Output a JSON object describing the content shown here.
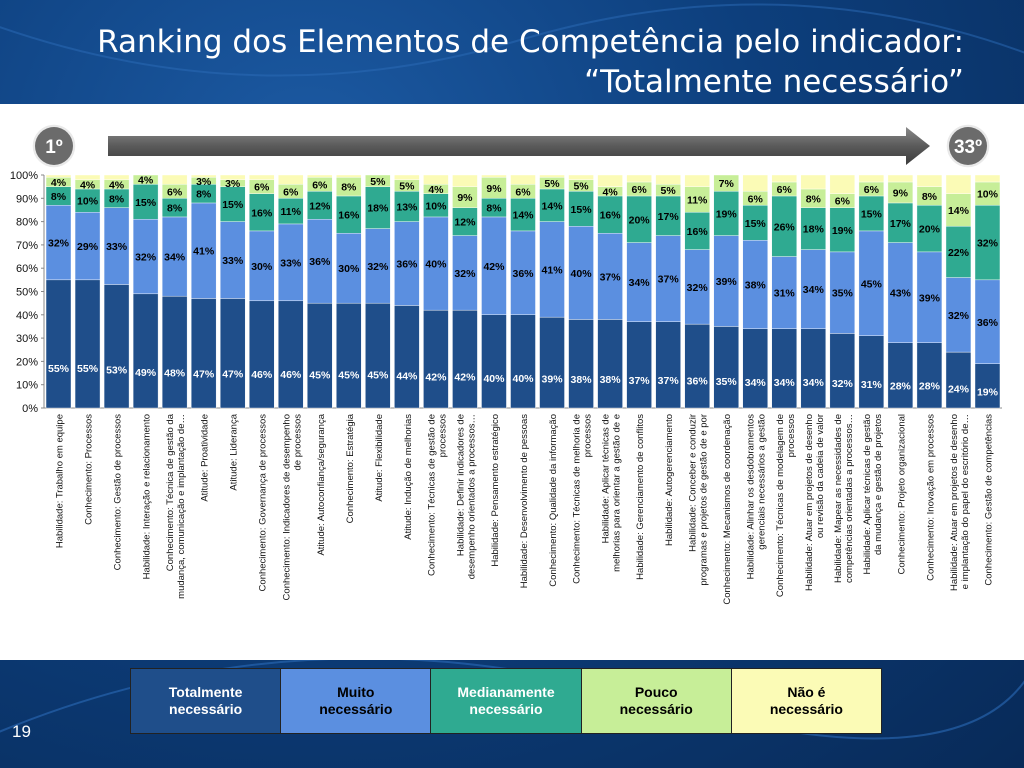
{
  "slide": {
    "title_line1": "Ranking dos Elementos de Competência pelo indicador:",
    "title_line2": "“Totalmente necessário”",
    "rank_start": "1º",
    "rank_end": "33º",
    "page_number": "19"
  },
  "colors": {
    "totalmente": "#1f4e8a",
    "muito": "#5b8fe0",
    "medianamente": "#2faa91",
    "pouco": "#c7ee98",
    "nao": "#fbfbb6"
  },
  "chart_data": {
    "type": "bar",
    "stacked": true,
    "ylim": [
      0,
      100
    ],
    "yticks": [
      "0%",
      "10%",
      "20%",
      "30%",
      "40%",
      "50%",
      "60%",
      "70%",
      "80%",
      "90%",
      "100%"
    ],
    "grid": false,
    "categories": [
      "Habilidade: Trabalho em equipe",
      "Conhecimento: Processos",
      "Conhecimento: Gestão de processos",
      "Habilidade: Interação e relacionamento",
      "Conhecimento: Técnica de gestão da mudança, comunicação e implantação de…",
      "Atitude: Proatividade",
      "Atitude: Liderança",
      "Conhecimento: Governança de processos",
      "Conhecimento: Indicadores de desempenho de processos",
      "Atitude: Autoconfiança/segurança",
      "Conhecimento: Estratégia",
      "Atitude: Flexibilidade",
      "Atitude: Indução de melhorias",
      "Conhecimento: Técnicas de gestão de processos",
      "Habilidade: Definir indicadores de desempenho orientados a processos…",
      "Habilidade: Pensamento estratégico",
      "Habilidade: Desenvolvimento de pessoas",
      "Conhecimento: Qualidade da informação",
      "Conhecimento: Técnicas de melhoria de processos",
      "Habilidade: Aplicar técnicas de melhorias para orientar a gestão de e por processos",
      "Habilidade: Gerenciamento de conflitos",
      "Habilidade: Autogerenciamento",
      "Habilidade: Conceber e conduzir programas e projetos de gestão de e por processos",
      "Conhecimento: Mecanismos de coordenação",
      "Habilidade: Alinhar os desdobramentos gerenciais necessários a gestão integrada…",
      "Conhecimento: Técnicas de modelagem de processos",
      "Habilidade: Atuar em projetos de desenho ou revisão da cadeia de valor",
      "Habilidade: Mapear as necessidades de competências orientadas a processos…",
      "Habilidade: Aplicar técnicas de gestão da mudança e gestão de projetos",
      "Conhecimento: Projeto organizacional",
      "Conhecimento: Inovação em processos",
      "Habilidade: Atuar em projetos de desenho e implantação do papel do escritório de…",
      "Conhecimento: Gestão de competências"
    ],
    "series": [
      {
        "name": "Totalmente necessário",
        "values": [
          55,
          55,
          53,
          49,
          48,
          47,
          47,
          46,
          46,
          45,
          45,
          45,
          44,
          42,
          42,
          40,
          40,
          39,
          38,
          38,
          37,
          37,
          36,
          35,
          34,
          34,
          34,
          32,
          31,
          28,
          28,
          24,
          19
        ]
      },
      {
        "name": "Muito necessário",
        "values": [
          32,
          29,
          33,
          32,
          34,
          41,
          33,
          30,
          33,
          36,
          30,
          32,
          36,
          40,
          32,
          42,
          36,
          41,
          40,
          37,
          34,
          37,
          32,
          39,
          38,
          31,
          34,
          35,
          45,
          43,
          39,
          32,
          36
        ]
      },
      {
        "name": "Medianamente necessário",
        "values": [
          8,
          10,
          8,
          15,
          8,
          8,
          15,
          16,
          11,
          12,
          16,
          18,
          13,
          10,
          12,
          8,
          14,
          14,
          15,
          16,
          20,
          17,
          16,
          19,
          15,
          26,
          18,
          19,
          15,
          17,
          20,
          22,
          32
        ]
      },
      {
        "name": "Pouco necessário",
        "values": [
          4,
          4,
          4,
          4,
          6,
          3,
          3,
          6,
          6,
          6,
          8,
          5,
          5,
          4,
          9,
          9,
          6,
          5,
          5,
          4,
          6,
          5,
          11,
          7,
          6,
          6,
          8,
          6,
          6,
          9,
          8,
          14,
          10
        ]
      },
      {
        "name": "Não é necessário",
        "values": [
          1,
          2,
          2,
          0,
          4,
          1,
          2,
          2,
          4,
          1,
          1,
          0,
          2,
          4,
          5,
          1,
          4,
          1,
          2,
          5,
          3,
          4,
          5,
          0,
          7,
          3,
          6,
          8,
          3,
          3,
          5,
          8,
          3
        ]
      }
    ],
    "labels": [
      [
        "55%",
        "32%",
        "8%",
        "4%",
        ""
      ],
      [
        "55%",
        "29%",
        "10%",
        "4%",
        ""
      ],
      [
        "53%",
        "33%",
        "8%",
        "4%",
        ""
      ],
      [
        "49%",
        "32%",
        "15%",
        "4%",
        ""
      ],
      [
        "48%",
        "34%",
        "8%",
        "6%",
        ""
      ],
      [
        "47%",
        "41%",
        "8%",
        "3%",
        ""
      ],
      [
        "47%",
        "33%",
        "15%",
        "3%",
        ""
      ],
      [
        "46%",
        "30%",
        "16%",
        "6%",
        ""
      ],
      [
        "46%",
        "33%",
        "11%",
        "6%",
        ""
      ],
      [
        "45%",
        "36%",
        "12%",
        "6%",
        ""
      ],
      [
        "45%",
        "30%",
        "16%",
        "8%",
        ""
      ],
      [
        "45%",
        "32%",
        "18%",
        "5%",
        ""
      ],
      [
        "44%",
        "36%",
        "13%",
        "5%",
        ""
      ],
      [
        "42%",
        "40%",
        "10%",
        "4%",
        ""
      ],
      [
        "42%",
        "32%",
        "12%",
        "9%",
        ""
      ],
      [
        "40%",
        "42%",
        "8%",
        "9%",
        ""
      ],
      [
        "40%",
        "36%",
        "14%",
        "6%",
        ""
      ],
      [
        "39%",
        "41%",
        "14%",
        "5%",
        ""
      ],
      [
        "38%",
        "40%",
        "15%",
        "5%",
        ""
      ],
      [
        "38%",
        "37%",
        "16%",
        "4%",
        ""
      ],
      [
        "37%",
        "34%",
        "20%",
        "6%",
        ""
      ],
      [
        "37%",
        "37%",
        "17%",
        "5%",
        ""
      ],
      [
        "36%",
        "32%",
        "16%",
        "11%",
        ""
      ],
      [
        "35%",
        "39%",
        "19%",
        "7%",
        ""
      ],
      [
        "34%",
        "38%",
        "15%",
        "6%",
        ""
      ],
      [
        "34%",
        "31%",
        "26%",
        "6%",
        ""
      ],
      [
        "34%",
        "34%",
        "18%",
        "8%",
        ""
      ],
      [
        "32%",
        "35%",
        "19%",
        "6%",
        ""
      ],
      [
        "31%",
        "45%",
        "15%",
        "6%",
        ""
      ],
      [
        "28%",
        "43%",
        "17%",
        "9%",
        ""
      ],
      [
        "28%",
        "39%",
        "20%",
        "8%",
        ""
      ],
      [
        "24%",
        "32%",
        "22%",
        "14%",
        ""
      ],
      [
        "19%",
        "36%",
        "32%",
        "10%",
        ""
      ]
    ]
  },
  "legend": [
    "Totalmente\nnecessário",
    "Muito\nnecessário",
    "Medianamente\nnecessário",
    "Pouco\nnecessário",
    "Não é\nnecessário"
  ]
}
